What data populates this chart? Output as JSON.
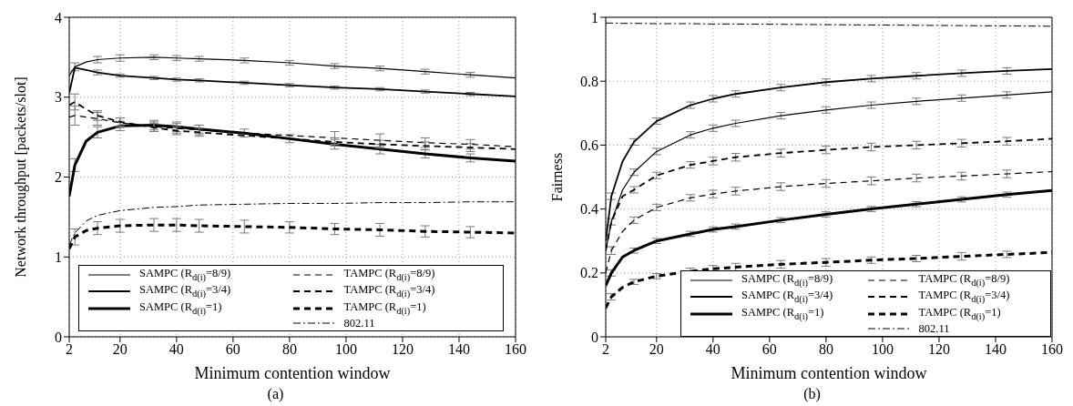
{
  "chart_data": [
    {
      "type": "line",
      "xlabel": "Minimum contention window",
      "ylabel": "Network throughput  [packets/slot]",
      "annotations": [
        "(a)"
      ],
      "xlim": [
        2,
        160
      ],
      "xticks": [
        2,
        20,
        40,
        60,
        80,
        100,
        120,
        140,
        160
      ],
      "ylim": [
        0,
        4
      ],
      "yticks": [
        0,
        1,
        2,
        3,
        4
      ],
      "grid": true,
      "legend": "bottom",
      "marker": "none",
      "x": [
        2,
        4,
        8,
        12,
        20,
        32,
        40,
        48,
        64,
        80,
        96,
        112,
        128,
        144,
        160
      ],
      "series": [
        {
          "name": "SAMPC (R$_{d(i)}$=8/9)",
          "color": "#000000",
          "line_style": "solid",
          "values": [
            3.27,
            3.38,
            3.44,
            3.47,
            3.49,
            3.5,
            3.49,
            3.48,
            3.46,
            3.43,
            3.39,
            3.36,
            3.32,
            3.28,
            3.24
          ],
          "errors": [
            null,
            0.05,
            null,
            0.04,
            0.04,
            0.03,
            0.03,
            0.03,
            0.03,
            0.03,
            0.03,
            0.03,
            0.03,
            0.03,
            null
          ]
        },
        {
          "name": "SAMPC (R$_{d(i)}$=3/4)",
          "color": "#000000",
          "line_style": "solid",
          "values": [
            3.05,
            3.37,
            3.34,
            3.31,
            3.27,
            3.24,
            3.22,
            3.21,
            3.18,
            3.15,
            3.12,
            3.1,
            3.07,
            3.04,
            3.01
          ],
          "errors": [
            null,
            null,
            null,
            0.03,
            0.02,
            0.02,
            0.02,
            0.02,
            0.02,
            0.02,
            0.02,
            0.02,
            0.02,
            0.02,
            null
          ]
        },
        {
          "name": "SAMPC (R$_{d(i)}$=1)",
          "color": "#000000",
          "line_style": "solid",
          "values": [
            1.76,
            2.15,
            2.45,
            2.56,
            2.64,
            2.65,
            2.63,
            2.6,
            2.55,
            2.48,
            2.41,
            2.35,
            2.29,
            2.24,
            2.2
          ],
          "errors": [
            null,
            0.08,
            null,
            0.07,
            0.06,
            0.06,
            0.06,
            0.05,
            0.05,
            0.05,
            0.06,
            0.06,
            0.05,
            0.05,
            null
          ]
        },
        {
          "name": "TAMPC (R$_{d(i)}$=8/9)",
          "color": "#000000",
          "line_style": "dashed",
          "values": [
            2.75,
            2.77,
            2.75,
            2.73,
            2.68,
            2.63,
            2.61,
            2.59,
            2.55,
            2.52,
            2.49,
            2.46,
            2.43,
            2.41,
            2.38
          ],
          "errors": [
            null,
            0.12,
            null,
            0.08,
            0.06,
            0.06,
            0.06,
            0.06,
            null,
            null,
            0.08,
            0.08,
            0.06,
            0.06,
            null
          ]
        },
        {
          "name": "TAMPC (R$_{d(i)}$=3/4)",
          "color": "#000000",
          "line_style": "dashed",
          "values": [
            2.9,
            2.94,
            2.85,
            2.77,
            2.69,
            2.62,
            2.58,
            2.56,
            2.52,
            2.48,
            2.44,
            2.41,
            2.39,
            2.37,
            2.35
          ],
          "errors": [
            null,
            0.1,
            null,
            0.06,
            0.05,
            0.05,
            0.05,
            0.05,
            null,
            null,
            0.05,
            0.05,
            0.05,
            0.05,
            null
          ]
        },
        {
          "name": "TAMPC (R$_{d(i)}$=1)",
          "color": "#000000",
          "line_style": "dashed",
          "values": [
            1.1,
            1.25,
            1.33,
            1.36,
            1.39,
            1.4,
            1.4,
            1.39,
            1.38,
            1.37,
            1.35,
            1.34,
            1.32,
            1.31,
            1.3
          ],
          "errors": [
            null,
            0.1,
            null,
            0.08,
            0.08,
            0.08,
            0.08,
            0.08,
            0.08,
            0.07,
            0.07,
            0.08,
            0.07,
            0.07,
            null
          ]
        },
        {
          "name": "802.11",
          "color": "#000000",
          "line_style": "dashdot",
          "values": [
            1.15,
            1.3,
            1.45,
            1.52,
            1.58,
            1.62,
            1.63,
            1.65,
            1.66,
            1.67,
            1.67,
            1.68,
            1.68,
            1.69,
            1.69
          ]
        }
      ]
    },
    {
      "type": "line",
      "xlabel": "Minimum contention window",
      "ylabel": "Fairness",
      "annotations": [
        "(b)"
      ],
      "xlim": [
        2,
        160
      ],
      "xticks": [
        2,
        20,
        40,
        60,
        80,
        100,
        120,
        140,
        160
      ],
      "ylim": [
        0,
        1
      ],
      "yticks": [
        0,
        0.2,
        0.4,
        0.6,
        0.8,
        1
      ],
      "grid": true,
      "legend": "bottom right",
      "marker": "none",
      "x": [
        2,
        4,
        8,
        12,
        20,
        32,
        40,
        48,
        64,
        80,
        96,
        112,
        128,
        144,
        160
      ],
      "series": [
        {
          "name": "SAMPC (R$_{d(i)}$=8/9)",
          "color": "#000000",
          "line_style": "solid",
          "values": [
            0.27,
            0.36,
            0.46,
            0.515,
            0.58,
            0.632,
            0.653,
            0.668,
            0.692,
            0.71,
            0.725,
            0.737,
            0.747,
            0.757,
            0.767
          ],
          "errors": [
            null,
            0.01,
            null,
            0.01,
            0.01,
            0.01,
            0.01,
            0.01,
            0.01,
            0.01,
            0.01,
            0.01,
            0.01,
            0.01,
            null
          ]
        },
        {
          "name": "SAMPC (R$_{d(i)}$=3/4)",
          "color": "#000000",
          "line_style": "solid",
          "values": [
            0.3,
            0.44,
            0.55,
            0.61,
            0.675,
            0.725,
            0.745,
            0.76,
            0.78,
            0.797,
            0.808,
            0.817,
            0.825,
            0.832,
            0.838
          ],
          "errors": [
            null,
            0.01,
            null,
            0.01,
            0.01,
            0.01,
            0.01,
            0.01,
            0.01,
            0.01,
            0.01,
            0.01,
            0.01,
            0.01,
            null
          ]
        },
        {
          "name": "SAMPC (R$_{d(i)}$=1)",
          "color": "#000000",
          "line_style": "solid",
          "values": [
            0.16,
            0.2,
            0.25,
            0.27,
            0.3,
            0.322,
            0.336,
            0.345,
            0.365,
            0.383,
            0.4,
            0.415,
            0.43,
            0.445,
            0.458
          ],
          "errors": [
            null,
            0.01,
            null,
            0.008,
            0.008,
            0.008,
            0.008,
            0.008,
            0.008,
            0.008,
            0.008,
            0.008,
            0.008,
            0.008,
            null
          ]
        },
        {
          "name": "TAMPC (R$_{d(i)}$=8/9)",
          "color": "#000000",
          "line_style": "dashed",
          "values": [
            0.2,
            0.27,
            0.33,
            0.365,
            0.405,
            0.435,
            0.447,
            0.456,
            0.47,
            0.48,
            0.488,
            0.497,
            0.503,
            0.51,
            0.517
          ],
          "errors": [
            null,
            0.012,
            null,
            0.01,
            0.01,
            0.01,
            0.012,
            0.012,
            0.012,
            0.012,
            0.012,
            0.012,
            0.012,
            0.012,
            null
          ]
        },
        {
          "name": "TAMPC (R$_{d(i)}$=3/4)",
          "color": "#000000",
          "line_style": "dashed",
          "values": [
            0.27,
            0.36,
            0.44,
            0.46,
            0.505,
            0.538,
            0.55,
            0.562,
            0.575,
            0.585,
            0.594,
            0.6,
            0.606,
            0.612,
            0.62
          ],
          "errors": [
            null,
            null,
            null,
            0.01,
            0.01,
            0.01,
            0.012,
            0.012,
            0.012,
            0.012,
            0.012,
            0.012,
            0.012,
            0.012,
            null
          ]
        },
        {
          "name": "TAMPC (R$_{d(i)}$=1)",
          "color": "#000000",
          "line_style": "dashed",
          "values": [
            0.09,
            0.125,
            0.155,
            0.172,
            0.19,
            0.205,
            0.213,
            0.218,
            0.227,
            0.233,
            0.24,
            0.245,
            0.252,
            0.258,
            0.264
          ],
          "errors": [
            null,
            0.01,
            null,
            0.008,
            0.008,
            0.01,
            0.01,
            0.012,
            0.012,
            0.012,
            0.01,
            0.01,
            0.012,
            0.01,
            null
          ]
        },
        {
          "name": "802.11",
          "color": "#000000",
          "line_style": "dashdot",
          "values": [
            0.982,
            0.982,
            0.981,
            0.981,
            0.98,
            0.98,
            0.979,
            0.979,
            0.978,
            0.977,
            0.976,
            0.975,
            0.974,
            0.973,
            0.972
          ]
        }
      ]
    }
  ]
}
